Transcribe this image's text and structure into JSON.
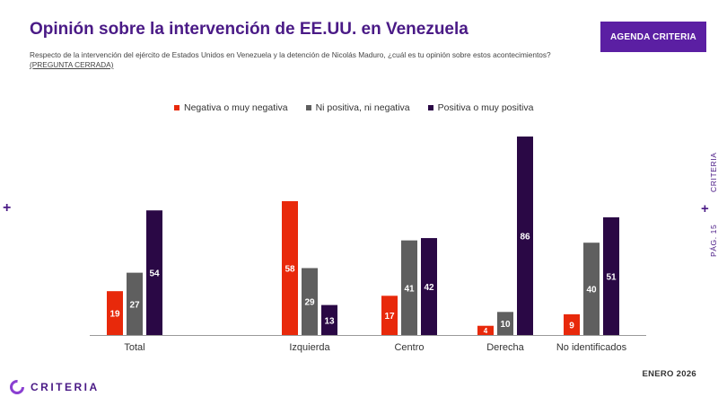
{
  "header": {
    "title": "Opinión sobre la intervención de EE.UU. en Venezuela",
    "subtitle": "Respecto de la intervención del ejército de Estados Unidos en Venezuela y la detención de Nicolás Maduro, ¿cuál es tu opinión sobre estos acontecimientos?",
    "subtitle_tag": "(PREGUNTA CERRADA)",
    "badge": "AGENDA CRITERIA"
  },
  "side": {
    "text_top": "CRITERIA",
    "text_bottom": "PÁG. 15"
  },
  "footer": {
    "date": "ENERO 2026",
    "logo_text": "CRITERIA"
  },
  "colors": {
    "negative": "#e8290b",
    "neutral": "#5f5f5f",
    "positive": "#2a0845",
    "brand": "#4a1a86"
  },
  "chart_data": {
    "type": "bar",
    "title": "Opinión sobre la intervención de EE.UU. en Venezuela",
    "categories": [
      "Total",
      "Izquierda",
      "Centro",
      "Derecha",
      "No identificados"
    ],
    "series": [
      {
        "name": "Negativa o muy negativa",
        "values": [
          19,
          58,
          17,
          4,
          9
        ]
      },
      {
        "name": "Ni positiva, ni negativa",
        "values": [
          27,
          29,
          41,
          10,
          40
        ]
      },
      {
        "name": "Positiva o muy positiva",
        "values": [
          54,
          13,
          42,
          86,
          51
        ]
      }
    ],
    "xlabel": "",
    "ylabel": "",
    "ylim": [
      0,
      86
    ],
    "grid": false,
    "legend": "top"
  }
}
